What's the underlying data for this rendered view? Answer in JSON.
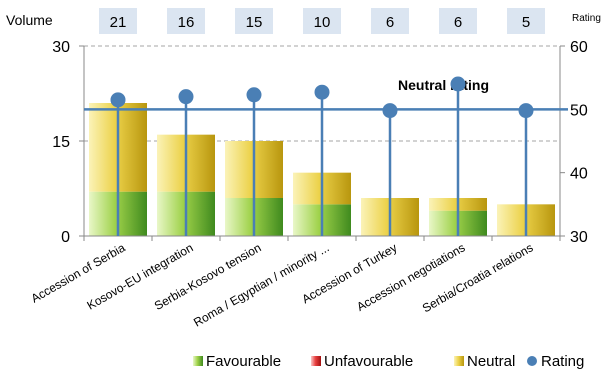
{
  "chart_data": {
    "type": "bar",
    "title": "",
    "left_axis_label": "Volume",
    "right_axis_label": "Rating",
    "categories": [
      "Accession of Serbia",
      "Kosovo-EU integration",
      "Serbia-Kosovo tension",
      "Roma / Egyptian / minority ...",
      "Accession of Turkey",
      "Accession negotiations",
      "Serbia/Croatia relations"
    ],
    "volume_totals": [
      "21",
      "16",
      "15",
      "10",
      "6",
      "6",
      "5"
    ],
    "y_left": {
      "min": 0,
      "max": 30,
      "ticks": [
        "0",
        "15",
        "30"
      ]
    },
    "y_right": {
      "min": 30,
      "max": 60,
      "ticks": [
        "30",
        "40",
        "50",
        "60"
      ]
    },
    "series": [
      {
        "name": "Favourable",
        "color": "#5aa02c",
        "values": [
          7,
          7,
          6,
          5,
          0,
          4,
          0
        ]
      },
      {
        "name": "Unfavourable",
        "color": "#e02020",
        "values": [
          0,
          0,
          0,
          0,
          0,
          0,
          0
        ]
      },
      {
        "name": "Neutral",
        "color": "#d8b81a",
        "values": [
          14,
          9,
          9,
          5,
          6,
          2,
          5
        ]
      }
    ],
    "rating": {
      "name": "Rating",
      "color": "#4a7fb5",
      "values": [
        51.5,
        52,
        52.3,
        52.7,
        49.8,
        54,
        49.8
      ]
    },
    "neutral_line": {
      "value": 50,
      "label": "Neutral rating"
    },
    "grid": true,
    "legend_position": "bottom"
  }
}
